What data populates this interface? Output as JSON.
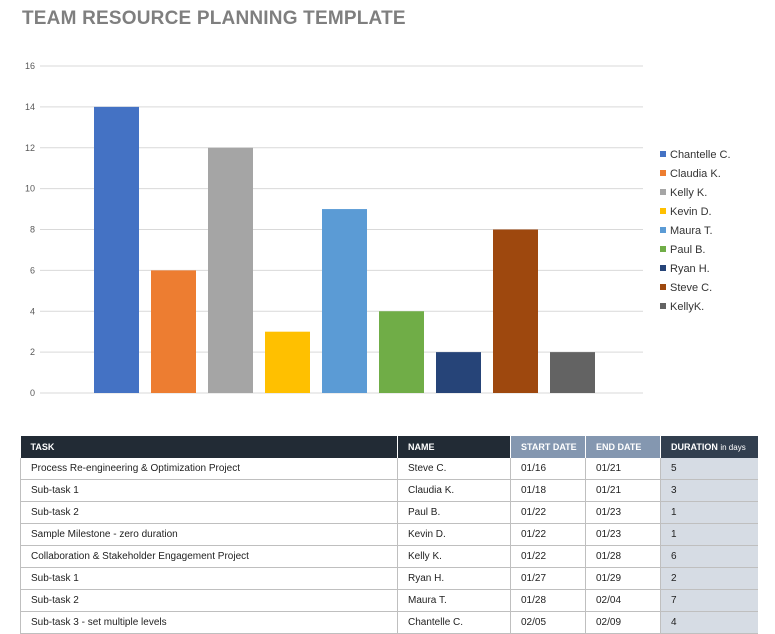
{
  "page": {
    "title": "TEAM RESOURCE PLANNING TEMPLATE"
  },
  "chart_data": {
    "type": "bar",
    "title": "",
    "xlabel": "",
    "ylabel": "",
    "ylim": [
      0,
      16
    ],
    "yticks": [
      0,
      2,
      4,
      6,
      8,
      10,
      12,
      14,
      16
    ],
    "grid": true,
    "legend_position": "right",
    "series": [
      {
        "name": "Chantelle C.",
        "value": 14,
        "color": "#4472c4"
      },
      {
        "name": "Claudia K.",
        "value": 6,
        "color": "#ed7d31"
      },
      {
        "name": "Kelly K.",
        "value": 12,
        "color": "#a5a5a5"
      },
      {
        "name": "Kevin D.",
        "value": 3,
        "color": "#ffc000"
      },
      {
        "name": "Maura T.",
        "value": 9,
        "color": "#5b9bd5"
      },
      {
        "name": "Paul B.",
        "value": 4,
        "color": "#70ad47"
      },
      {
        "name": "Ryan H.",
        "value": 2,
        "color": "#264478"
      },
      {
        "name": "Steve C.",
        "value": 8,
        "color": "#9e480e"
      },
      {
        "name": "KellyK.",
        "value": 2,
        "color": "#636363"
      }
    ]
  },
  "table": {
    "headers": {
      "task": "TASK",
      "name": "NAME",
      "start": "START DATE",
      "end": "END DATE",
      "duration": "DURATION",
      "duration_unit": "in days"
    },
    "rows": [
      {
        "task": "Process Re-engineering & Optimization Project",
        "name": "Steve C.",
        "start": "01/16",
        "end": "01/21",
        "duration": "5"
      },
      {
        "task": "Sub-task 1",
        "name": "Claudia K.",
        "start": "01/18",
        "end": "01/21",
        "duration": "3"
      },
      {
        "task": "Sub-task 2",
        "name": "Paul B.",
        "start": "01/22",
        "end": "01/23",
        "duration": "1"
      },
      {
        "task": "Sample Milestone - zero duration",
        "name": "Kevin D.",
        "start": "01/22",
        "end": "01/23",
        "duration": "1"
      },
      {
        "task": "Collaboration & Stakeholder Engagement Project",
        "name": "Kelly K.",
        "start": "01/22",
        "end": "01/28",
        "duration": "6"
      },
      {
        "task": "Sub-task 1",
        "name": "Ryan H.",
        "start": "01/27",
        "end": "01/29",
        "duration": "2"
      },
      {
        "task": "Sub-task 2",
        "name": "Maura T.",
        "start": "01/28",
        "end": "02/04",
        "duration": "7"
      },
      {
        "task": "Sub-task 3 - set multiple levels",
        "name": "Chantelle C.",
        "start": "02/05",
        "end": "02/09",
        "duration": "4"
      }
    ]
  }
}
